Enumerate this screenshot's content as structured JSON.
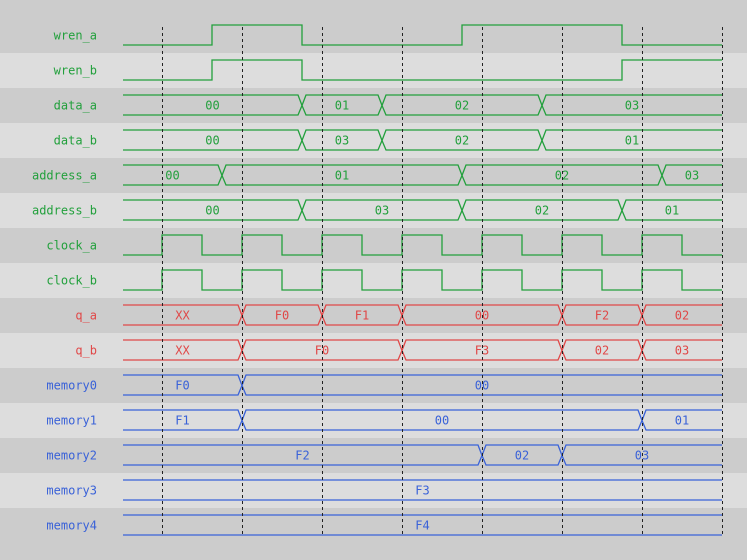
{
  "time_range": [
    0,
    60
  ],
  "gridlines": [
    4,
    12,
    20,
    28,
    36,
    44,
    52,
    60
  ],
  "colors": {
    "green": "#22a03c",
    "red": "#e04848",
    "blue": "#3a62d8",
    "row_dark": "#cccccc",
    "row_light": "#dddddd",
    "grid": "#222222"
  },
  "signals": [
    {
      "name": "wren_a",
      "type": "bit",
      "color": "green",
      "initial": 0,
      "edges": [
        9,
        18,
        34,
        50
      ]
    },
    {
      "name": "wren_b",
      "type": "bit",
      "color": "green",
      "initial": 0,
      "edges": [
        9,
        18,
        50
      ]
    },
    {
      "name": "data_a",
      "type": "bus",
      "color": "green",
      "segments": [
        {
          "end": 18,
          "value": "00"
        },
        {
          "end": 26,
          "value": "01"
        },
        {
          "end": 42,
          "value": "02"
        },
        {
          "end": 60,
          "value": "03"
        }
      ]
    },
    {
      "name": "data_b",
      "type": "bus",
      "color": "green",
      "segments": [
        {
          "end": 18,
          "value": "00"
        },
        {
          "end": 26,
          "value": "03"
        },
        {
          "end": 42,
          "value": "02"
        },
        {
          "end": 60,
          "value": "01"
        }
      ]
    },
    {
      "name": "address_a",
      "type": "bus",
      "color": "green",
      "segments": [
        {
          "end": 10,
          "value": "00"
        },
        {
          "end": 34,
          "value": "01"
        },
        {
          "end": 54,
          "value": "02"
        },
        {
          "end": 60,
          "value": "03"
        }
      ]
    },
    {
      "name": "address_b",
      "type": "bus",
      "color": "green",
      "segments": [
        {
          "end": 18,
          "value": "00"
        },
        {
          "end": 34,
          "value": "03"
        },
        {
          "end": 50,
          "value": "02"
        },
        {
          "end": 60,
          "value": "01"
        }
      ]
    },
    {
      "name": "clock_a",
      "type": "bit",
      "color": "green",
      "initial": 0,
      "edges": [
        4,
        8,
        12,
        16,
        20,
        24,
        28,
        32,
        36,
        40,
        44,
        48,
        52,
        56
      ]
    },
    {
      "name": "clock_b",
      "type": "bit",
      "color": "green",
      "initial": 0,
      "edges": [
        4,
        8,
        12,
        16,
        20,
        24,
        28,
        32,
        36,
        40,
        44,
        48,
        52,
        56
      ]
    },
    {
      "name": "q_a",
      "type": "bus",
      "color": "red",
      "segments": [
        {
          "end": 12,
          "value": "XX"
        },
        {
          "end": 20,
          "value": "F0"
        },
        {
          "end": 28,
          "value": "F1"
        },
        {
          "end": 44,
          "value": "00"
        },
        {
          "end": 52,
          "value": "F2"
        },
        {
          "end": 60,
          "value": "02"
        }
      ]
    },
    {
      "name": "q_b",
      "type": "bus",
      "color": "red",
      "segments": [
        {
          "end": 12,
          "value": "XX"
        },
        {
          "end": 28,
          "value": "F0"
        },
        {
          "end": 44,
          "value": "F3"
        },
        {
          "end": 52,
          "value": "02"
        },
        {
          "end": 60,
          "value": "03"
        }
      ]
    },
    {
      "name": "memory0",
      "type": "bus",
      "color": "blue",
      "segments": [
        {
          "end": 12,
          "value": "F0"
        },
        {
          "end": 60,
          "value": "00"
        }
      ]
    },
    {
      "name": "memory1",
      "type": "bus",
      "color": "blue",
      "segments": [
        {
          "end": 12,
          "value": "F1"
        },
        {
          "end": 52,
          "value": "00"
        },
        {
          "end": 60,
          "value": "01"
        }
      ]
    },
    {
      "name": "memory2",
      "type": "bus",
      "color": "blue",
      "segments": [
        {
          "end": 36,
          "value": "F2"
        },
        {
          "end": 44,
          "value": "02"
        },
        {
          "end": 60,
          "value": "03"
        }
      ]
    },
    {
      "name": "memory3",
      "type": "bus",
      "color": "blue",
      "segments": [
        {
          "end": 60,
          "value": "F3"
        }
      ]
    },
    {
      "name": "memory4",
      "type": "bus",
      "color": "blue",
      "segments": [
        {
          "end": 60,
          "value": "F4"
        }
      ]
    }
  ]
}
